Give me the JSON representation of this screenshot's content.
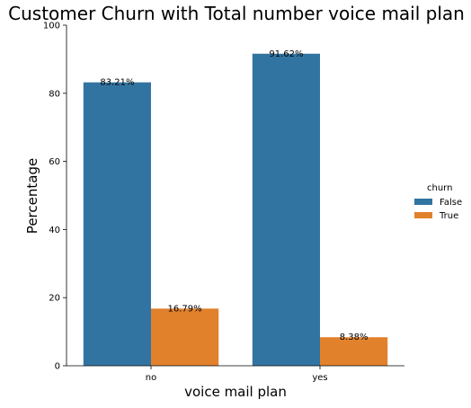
{
  "chart_data": {
    "type": "bar",
    "title": "Customer Churn with Total number voice mail plan",
    "xlabel": "voice mail plan",
    "ylabel": "Percentage",
    "categories": [
      "no",
      "yes"
    ],
    "ylim": [
      0,
      100
    ],
    "yticks": [
      0,
      20,
      40,
      60,
      80,
      100
    ],
    "grid": false,
    "legend": {
      "title": "churn",
      "placement": "right"
    },
    "series": [
      {
        "name": "False",
        "color": "#3274a1",
        "values": [
          83.21,
          91.62
        ],
        "labels": [
          "83.21%",
          "91.62%"
        ]
      },
      {
        "name": "True",
        "color": "#e1812c",
        "values": [
          16.79,
          8.38
        ],
        "labels": [
          "16.79%",
          "8.38%"
        ]
      }
    ]
  }
}
